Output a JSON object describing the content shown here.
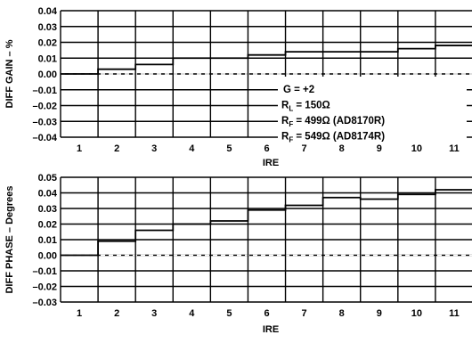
{
  "chart_data": [
    {
      "type": "line",
      "step": true,
      "xlabel": "IRE",
      "ylabel": "DIFF GAIN – %",
      "x": [
        1,
        2,
        3,
        4,
        5,
        6,
        7,
        8,
        9,
        10,
        11
      ],
      "xlim": [
        0.5,
        11.5
      ],
      "ylim": [
        -0.04,
        0.04
      ],
      "yticks": [
        "0.04",
        "0.03",
        "0.02",
        "0.01",
        "0.00",
        "–0.01",
        "–0.02",
        "–0.03",
        "–0.04"
      ],
      "grid": true,
      "series": [
        {
          "values": [
            0.0,
            0.003,
            0.006,
            0.01,
            0.01,
            0.012,
            0.014,
            0.014,
            0.014,
            0.016,
            0.018
          ]
        }
      ],
      "annotation": {
        "lines": [
          {
            "text": "G = +2",
            "sub": "",
            "rest": ""
          },
          {
            "text": "R",
            "sub": "L",
            "rest": " = 150Ω"
          },
          {
            "text": "R",
            "sub": "F",
            "rest": " = 499Ω (AD8170R)"
          },
          {
            "text": "R",
            "sub": "F",
            "rest": " = 549Ω (AD8174R)"
          }
        ],
        "placement": "lower-right"
      }
    },
    {
      "type": "line",
      "step": true,
      "xlabel": "IRE",
      "ylabel": "DIFF PHASE – Degrees",
      "x": [
        1,
        2,
        3,
        4,
        5,
        6,
        7,
        8,
        9,
        10,
        11
      ],
      "xlim": [
        0.5,
        11.5
      ],
      "ylim": [
        -0.03,
        0.05
      ],
      "yticks": [
        "0.05",
        "0.04",
        "0.03",
        "0.02",
        "0.01",
        "0.00",
        "–0.01",
        "–0.02",
        "–0.03"
      ],
      "grid": true,
      "series": [
        {
          "values": [
            0.0,
            0.009,
            0.016,
            0.02,
            0.022,
            0.029,
            0.032,
            0.037,
            0.036,
            0.039,
            0.042
          ]
        }
      ]
    }
  ]
}
